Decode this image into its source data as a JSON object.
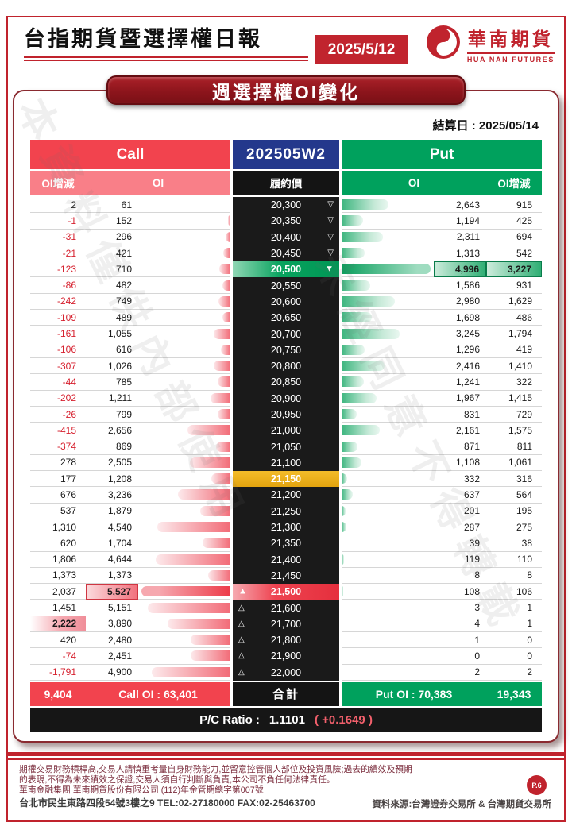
{
  "header": {
    "title": "台指期貨暨選擇權日報",
    "date": "2025/5/12",
    "brand_name": "華南期貨",
    "brand_name_en": "HUA NAN FUTURES",
    "banner": "週選擇權OI變化"
  },
  "table": {
    "settlement": "結算日 : 2025/05/14",
    "call_header": "Call",
    "contract": "202505W2",
    "put_header": "Put",
    "sub_headers": {
      "oi_change": "OI增減",
      "oi": "OI",
      "strike": "履約價"
    },
    "rows": [
      {
        "call_chg": "2",
        "call_oi": "61",
        "strike": "20,300",
        "put_oi": "2,643",
        "put_chg": "915",
        "marker": "down-hollow"
      },
      {
        "call_chg": "-1",
        "call_oi": "152",
        "strike": "20,350",
        "put_oi": "1,194",
        "put_chg": "425",
        "marker": "down-hollow"
      },
      {
        "call_chg": "-31",
        "call_oi": "296",
        "strike": "20,400",
        "put_oi": "2,311",
        "put_chg": "694",
        "marker": "down-hollow"
      },
      {
        "call_chg": "-21",
        "call_oi": "421",
        "strike": "20,450",
        "put_oi": "1,313",
        "put_chg": "542",
        "marker": "down-hollow"
      },
      {
        "call_chg": "-123",
        "call_oi": "710",
        "strike": "20,500",
        "put_oi": "4,996",
        "put_chg": "3,227",
        "marker": "down-solid",
        "strike_style": "green",
        "hl": "put"
      },
      {
        "call_chg": "-86",
        "call_oi": "482",
        "strike": "20,550",
        "put_oi": "1,586",
        "put_chg": "931"
      },
      {
        "call_chg": "-242",
        "call_oi": "749",
        "strike": "20,600",
        "put_oi": "2,980",
        "put_chg": "1,629"
      },
      {
        "call_chg": "-109",
        "call_oi": "489",
        "strike": "20,650",
        "put_oi": "1,698",
        "put_chg": "486"
      },
      {
        "call_chg": "-161",
        "call_oi": "1,055",
        "strike": "20,700",
        "put_oi": "3,245",
        "put_chg": "1,794"
      },
      {
        "call_chg": "-106",
        "call_oi": "616",
        "strike": "20,750",
        "put_oi": "1,296",
        "put_chg": "419"
      },
      {
        "call_chg": "-307",
        "call_oi": "1,026",
        "strike": "20,800",
        "put_oi": "2,416",
        "put_chg": "1,410"
      },
      {
        "call_chg": "-44",
        "call_oi": "785",
        "strike": "20,850",
        "put_oi": "1,241",
        "put_chg": "322"
      },
      {
        "call_chg": "-202",
        "call_oi": "1,211",
        "strike": "20,900",
        "put_oi": "1,967",
        "put_chg": "1,415"
      },
      {
        "call_chg": "-26",
        "call_oi": "799",
        "strike": "20,950",
        "put_oi": "831",
        "put_chg": "729"
      },
      {
        "call_chg": "-415",
        "call_oi": "2,656",
        "strike": "21,000",
        "put_oi": "2,161",
        "put_chg": "1,575"
      },
      {
        "call_chg": "-374",
        "call_oi": "869",
        "strike": "21,050",
        "put_oi": "871",
        "put_chg": "811"
      },
      {
        "call_chg": "278",
        "call_oi": "2,505",
        "strike": "21,100",
        "put_oi": "1,108",
        "put_chg": "1,061"
      },
      {
        "call_chg": "177",
        "call_oi": "1,208",
        "strike": "21,150",
        "put_oi": "332",
        "put_chg": "316",
        "strike_style": "yellow"
      },
      {
        "call_chg": "676",
        "call_oi": "3,236",
        "strike": "21,200",
        "put_oi": "637",
        "put_chg": "564"
      },
      {
        "call_chg": "537",
        "call_oi": "1,879",
        "strike": "21,250",
        "put_oi": "201",
        "put_chg": "195"
      },
      {
        "call_chg": "1,310",
        "call_oi": "4,540",
        "strike": "21,300",
        "put_oi": "287",
        "put_chg": "275"
      },
      {
        "call_chg": "620",
        "call_oi": "1,704",
        "strike": "21,350",
        "put_oi": "39",
        "put_chg": "38"
      },
      {
        "call_chg": "1,806",
        "call_oi": "4,644",
        "strike": "21,400",
        "put_oi": "119",
        "put_chg": "110"
      },
      {
        "call_chg": "1,373",
        "call_oi": "1,373",
        "strike": "21,450",
        "put_oi": "8",
        "put_chg": "8"
      },
      {
        "call_chg": "2,037",
        "call_oi": "5,527",
        "strike": "21,500",
        "put_oi": "108",
        "put_chg": "106",
        "marker": "up-solid",
        "strike_style": "red",
        "hl": "call_oi"
      },
      {
        "call_chg": "1,451",
        "call_oi": "5,151",
        "strike": "21,600",
        "put_oi": "3",
        "put_chg": "1",
        "marker": "up-hollow"
      },
      {
        "call_chg": "2,222",
        "call_oi": "3,890",
        "strike": "21,700",
        "put_oi": "4",
        "put_chg": "1",
        "marker": "up-hollow",
        "hl": "call_chg"
      },
      {
        "call_chg": "420",
        "call_oi": "2,480",
        "strike": "21,800",
        "put_oi": "1",
        "put_chg": "0",
        "marker": "up-hollow"
      },
      {
        "call_chg": "-74",
        "call_oi": "2,451",
        "strike": "21,900",
        "put_oi": "0",
        "put_chg": "0",
        "marker": "up-hollow"
      },
      {
        "call_chg": "-1,791",
        "call_oi": "4,900",
        "strike": "22,000",
        "put_oi": "2",
        "put_chg": "2",
        "marker": "up-hollow"
      }
    ],
    "footer": {
      "call_change_total": "9,404",
      "call_oi_total": "Call OI : 63,401",
      "total_label": "合計",
      "put_oi_total": "Put OI : 70,383",
      "put_change_total": "19,343"
    },
    "pc_ratio": {
      "label": "P/C Ratio :",
      "value": "1.1101",
      "change": "( +0.1649 )"
    }
  },
  "watermark": {
    "line1": "本資料僅供內部使用",
    "line2": "未經同意不得轉載"
  },
  "colors": {
    "accent_red": "#c0232d",
    "call_red": "#f2434e",
    "put_green": "#00a15d",
    "contract_navy": "#24388c",
    "highlight_gold": "#eeb422"
  },
  "footer": {
    "disclaimer_line1": "期權交易財務槓桿高,交易人請慎重考量自身財務能力,並留意控管個人部位及投資風險;過去的績效及預期",
    "disclaimer_line2": "的表現,不得為未來績效之保證,交易人須自行判斷與負責,本公司不負任何法律責任。",
    "disclaimer_line3": "華南金融集團 華南期貨股份有限公司 (112)年金管期總字第007號",
    "address": "台北市民生東路四段54號3樓之9  TEL:02-27180000  FAX:02-25463700",
    "source": "資料來源:台灣證券交易所 & 台灣期貨交易所",
    "page_badge": "P.6"
  }
}
